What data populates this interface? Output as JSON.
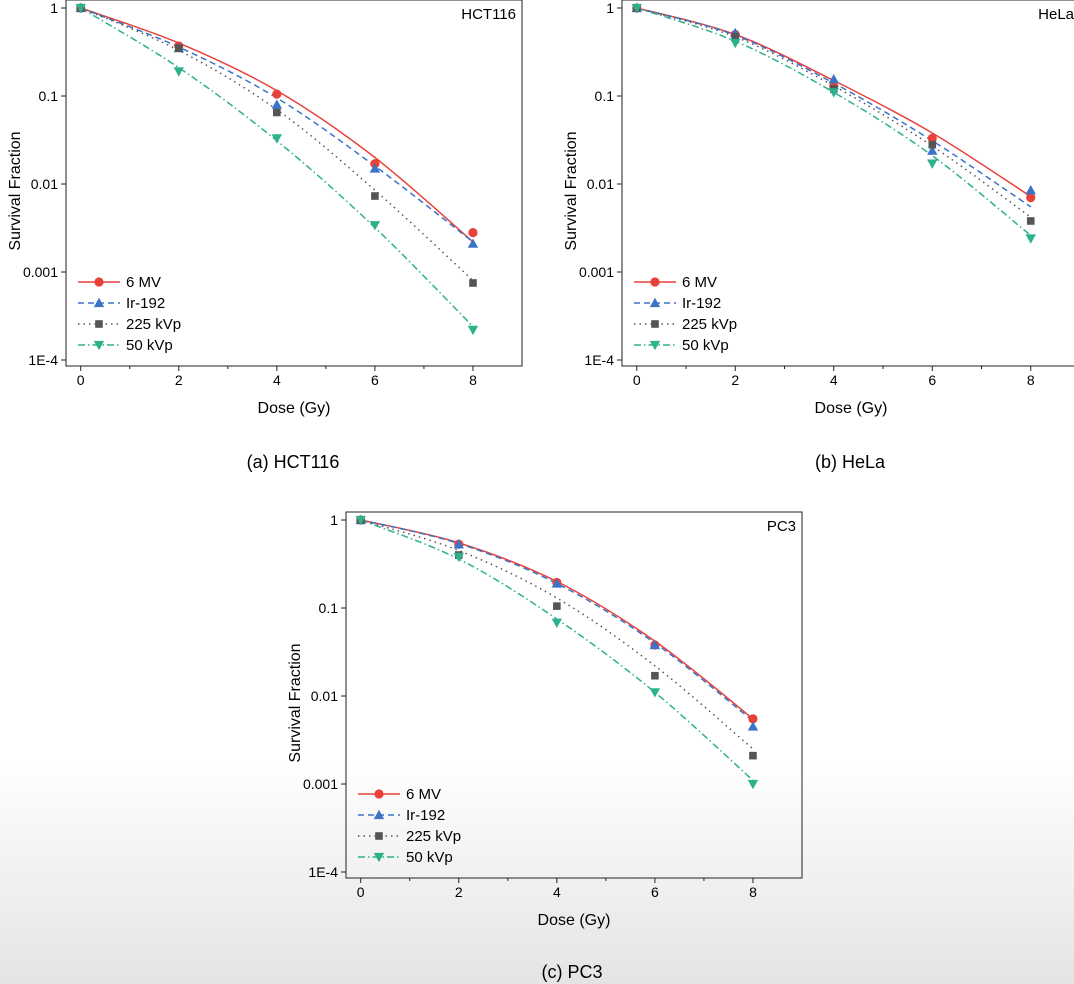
{
  "chart_data": [
    {
      "type": "line",
      "panel_label": "HCT116",
      "caption": "(a) HCT116",
      "xlabel": "Dose (Gy)",
      "ylabel": "Survival Fraction",
      "yscale": "log",
      "xlim": [
        -0.3,
        9.0
      ],
      "ylim": [
        0.0001,
        1
      ],
      "xticks": [
        "0",
        "2",
        "4",
        "6",
        "8"
      ],
      "yticks": [
        "1E-4",
        "0.001",
        "0.01",
        "0.1",
        "1"
      ],
      "legend_position": "bottom-left",
      "grid": false,
      "series": [
        {
          "name": "6 MV",
          "color": "#e8413a",
          "dash": "solid",
          "marker": "circle",
          "x": [
            0,
            2,
            4,
            6,
            8
          ],
          "y": [
            1,
            0.37,
            0.105,
            0.017,
            0.0028
          ],
          "fit_y": [
            1,
            0.4,
            0.115,
            0.02,
            0.0022
          ]
        },
        {
          "name": "Ir-192",
          "color": "#3a73c7",
          "dash": "dashed",
          "marker": "triangle-up",
          "x": [
            0,
            2,
            4,
            6,
            8
          ],
          "y": [
            1,
            0.35,
            0.08,
            0.015,
            0.0021
          ],
          "fit_y": [
            1,
            0.36,
            0.095,
            0.016,
            0.0022
          ]
        },
        {
          "name": "225 kVp",
          "color": "#555555",
          "dash": "dotted",
          "marker": "square",
          "x": [
            0,
            2,
            4,
            6,
            8
          ],
          "y": [
            1,
            0.35,
            0.065,
            0.0073,
            0.00075
          ],
          "fit_y": [
            1,
            0.33,
            0.07,
            0.0085,
            0.0008
          ]
        },
        {
          "name": "50 kVp",
          "color": "#2db08c",
          "dash": "dash-dot",
          "marker": "triangle-down",
          "x": [
            0,
            2,
            4,
            6,
            8
          ],
          "y": [
            1,
            0.19,
            0.033,
            0.0034,
            0.00022
          ],
          "fit_y": [
            1,
            0.21,
            0.031,
            0.0032,
            0.00024
          ]
        }
      ]
    },
    {
      "type": "line",
      "panel_label": "HeLa",
      "caption": "(b) HeLa",
      "xlabel": "Dose (Gy)",
      "ylabel": "Survival Fraction",
      "yscale": "log",
      "xlim": [
        -0.3,
        9.0
      ],
      "ylim": [
        0.0001,
        1
      ],
      "xticks": [
        "0",
        "2",
        "4",
        "6",
        "8"
      ],
      "yticks": [
        "1E-4",
        "0.001",
        "0.01",
        "0.1",
        "1"
      ],
      "legend_position": "bottom-left",
      "grid": false,
      "series": [
        {
          "name": "6 MV",
          "color": "#e8413a",
          "dash": "solid",
          "marker": "circle",
          "x": [
            0,
            2,
            4,
            6,
            8
          ],
          "y": [
            1,
            0.5,
            0.13,
            0.033,
            0.007
          ],
          "fit_y": [
            1,
            0.5,
            0.15,
            0.038,
            0.0072
          ]
        },
        {
          "name": "Ir-192",
          "color": "#3a73c7",
          "dash": "dashed",
          "marker": "triangle-up",
          "x": [
            0,
            2,
            4,
            6,
            8
          ],
          "y": [
            1,
            0.52,
            0.155,
            0.024,
            0.0085
          ],
          "fit_y": [
            1,
            0.49,
            0.14,
            0.031,
            0.0055
          ]
        },
        {
          "name": "225 kVp",
          "color": "#555555",
          "dash": "dotted",
          "marker": "square",
          "x": [
            0,
            2,
            4,
            6,
            8
          ],
          "y": [
            1,
            0.47,
            0.12,
            0.028,
            0.0038
          ],
          "fit_y": [
            1,
            0.47,
            0.13,
            0.027,
            0.0042
          ]
        },
        {
          "name": "50 kVp",
          "color": "#2db08c",
          "dash": "dash-dot",
          "marker": "triangle-down",
          "x": [
            0,
            2,
            4,
            6,
            8
          ],
          "y": [
            1,
            0.4,
            0.11,
            0.017,
            0.0024
          ],
          "fit_y": [
            1,
            0.42,
            0.11,
            0.021,
            0.0026
          ]
        }
      ]
    },
    {
      "type": "line",
      "panel_label": "PC3",
      "caption": "(c) PC3",
      "xlabel": "Dose (Gy)",
      "ylabel": "Survival Fraction",
      "yscale": "log",
      "xlim": [
        -0.3,
        9.0
      ],
      "ylim": [
        0.0001,
        1
      ],
      "xticks": [
        "0",
        "2",
        "4",
        "6",
        "8"
      ],
      "yticks": [
        "1E-4",
        "0.001",
        "0.01",
        "0.1",
        "1"
      ],
      "legend_position": "bottom-left",
      "grid": false,
      "series": [
        {
          "name": "6 MV",
          "color": "#e8413a",
          "dash": "solid",
          "marker": "circle",
          "x": [
            0,
            2,
            4,
            6,
            8
          ],
          "y": [
            1,
            0.53,
            0.195,
            0.038,
            0.0055
          ],
          "fit_y": [
            1,
            0.55,
            0.2,
            0.042,
            0.0055
          ]
        },
        {
          "name": "Ir-192",
          "color": "#3a73c7",
          "dash": "dashed",
          "marker": "triangle-up",
          "x": [
            0,
            2,
            4,
            6,
            8
          ],
          "y": [
            1,
            0.53,
            0.19,
            0.038,
            0.0045
          ],
          "fit_y": [
            1,
            0.54,
            0.19,
            0.04,
            0.0052
          ]
        },
        {
          "name": "225 kVp",
          "color": "#555555",
          "dash": "dotted",
          "marker": "square",
          "x": [
            0,
            2,
            4,
            6,
            8
          ],
          "y": [
            1,
            0.4,
            0.105,
            0.017,
            0.0021
          ],
          "fit_y": [
            1,
            0.45,
            0.13,
            0.022,
            0.0025
          ]
        },
        {
          "name": "50 kVp",
          "color": "#2db08c",
          "dash": "dash-dot",
          "marker": "triangle-down",
          "x": [
            0,
            2,
            4,
            6,
            8
          ],
          "y": [
            1,
            0.38,
            0.068,
            0.011,
            0.001
          ],
          "fit_y": [
            1,
            0.36,
            0.075,
            0.011,
            0.0011
          ]
        }
      ]
    }
  ]
}
